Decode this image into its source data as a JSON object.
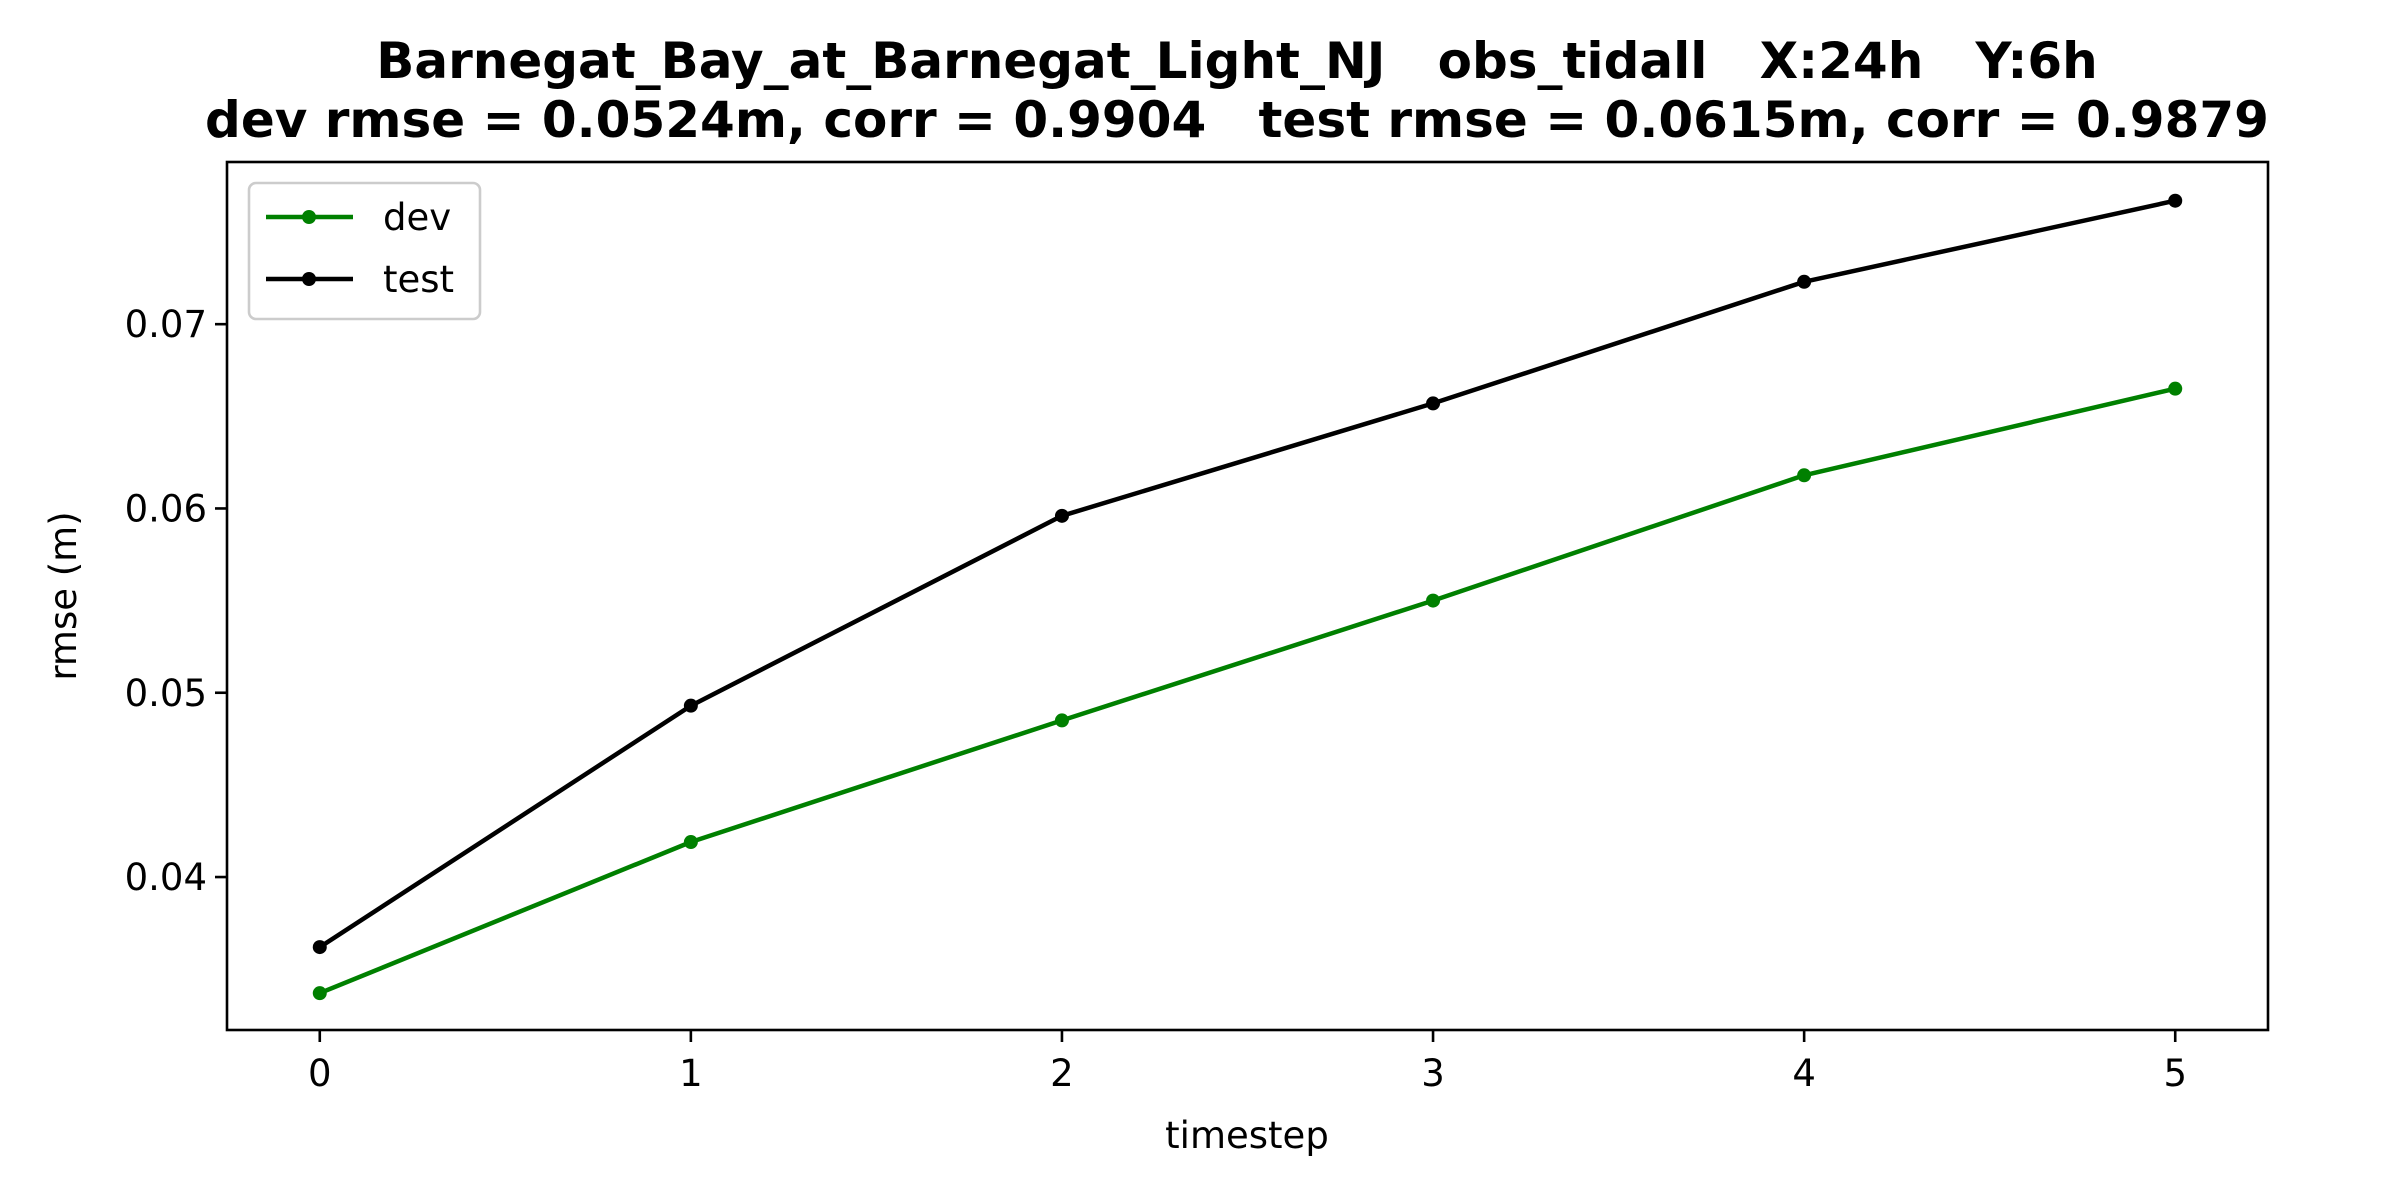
{
  "chart_data": {
    "type": "line",
    "title": "Barnegat_Bay_at_Barnegat_Light_NJ   obs_tidall   X:24h   Y:6h",
    "subtitle": "dev rmse = 0.0524m, corr = 0.9904   test rmse = 0.0615m, corr = 0.9879",
    "xlabel": "timestep",
    "ylabel": "rmse (m)",
    "x": [
      0,
      1,
      2,
      3,
      4,
      5
    ],
    "xticks": [
      "0",
      "1",
      "2",
      "3",
      "4",
      "5"
    ],
    "yticks": [
      "0.04",
      "0.05",
      "0.06",
      "0.07"
    ],
    "xlim": [
      -0.25,
      5.25
    ],
    "ylim": [
      0.0317,
      0.0788
    ],
    "grid": false,
    "legend_position": "top-left",
    "series": [
      {
        "name": "dev",
        "color": "#008000",
        "values": [
          0.0337,
          0.0419,
          0.0485,
          0.055,
          0.0618,
          0.0665
        ]
      },
      {
        "name": "test",
        "color": "#000000",
        "values": [
          0.0362,
          0.0493,
          0.0596,
          0.0657,
          0.0723,
          0.0767
        ]
      }
    ]
  }
}
